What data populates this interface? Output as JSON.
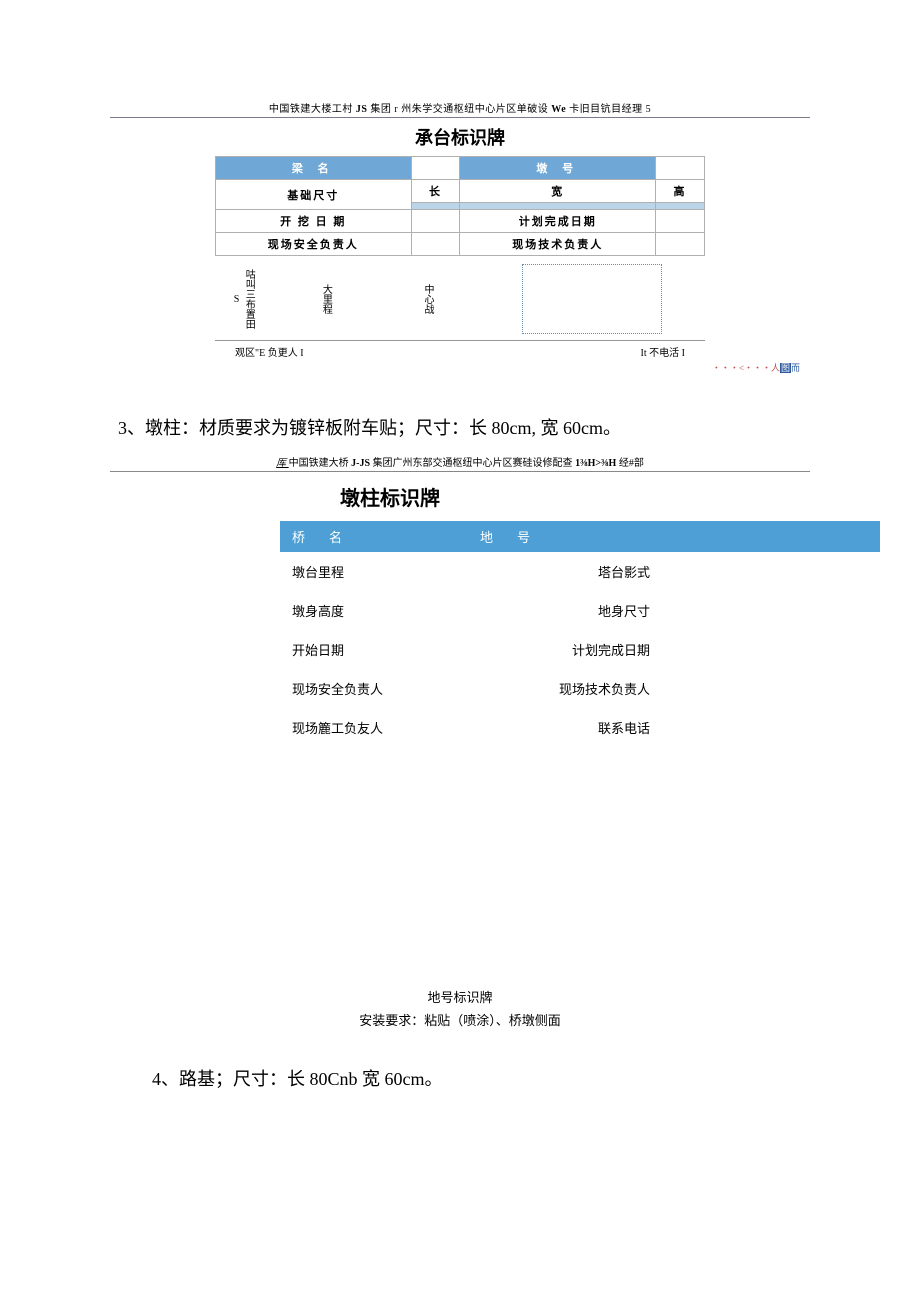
{
  "sign1": {
    "header_prefix": "中国铁建大楼工村 ",
    "header_bold1": "JS",
    "header_mid1": " 集团 r 州朱学交通枢纽中心片区单破设 ",
    "header_bold2": "We",
    "header_suffix": " 卡旧目钪目经理 5",
    "title": "承台标识牌",
    "row_hdr_left": "梁   名",
    "row_hdr_right": "墩   号",
    "base_size_label": "基础尺寸",
    "col_long": "长",
    "col_wide": "宽",
    "col_high": "高",
    "open_date": "开 挖 日 期",
    "plan_date": "计划完成日期",
    "safety_person": "现场安全负责人",
    "tech_person": "现场技术负责人",
    "diag_left1": "S",
    "diag_left2": "咕叫三布置田",
    "diag_mid1": "大里程",
    "diag_mid2": "中心战",
    "footer_left": "观区\"E 负更人 I",
    "footer_right": "It 不电活 I",
    "tiny_right": "・・・<・・・人",
    "tiny_box": "图",
    "tiny_after": "而"
  },
  "section3_text": "3、墩柱：材质要求为镀锌板附车贴；尺寸：长 80cm, 宽 60cm。",
  "sign2": {
    "header_u": "厍 ",
    "header_text1": "中国铁建大桥 ",
    "header_b1": "J-JS",
    "header_text2": " 集团广州东部交通枢纽中心片区赛硅设修配查 ",
    "header_b2": "1⅜H>⅜H",
    "header_text3": " 经#部",
    "title": "墩柱标识牌",
    "hdr_left": "桥名",
    "hdr_right": "地号",
    "rows": [
      {
        "l1": "墩台里程",
        "l2": "塔台影式"
      },
      {
        "l1": "墩身高度",
        "l2": "地身尺寸"
      },
      {
        "l1": "开始日期",
        "l2": "计划完成日期"
      },
      {
        "l1": "现场安全负责人",
        "l2": "现场技术负责人"
      },
      {
        "l1": "现场簏工负友人",
        "l2": "联系电话"
      }
    ]
  },
  "caption": {
    "line1": "地号标识牌",
    "line2": "安装要求：粘贴（喷涂）、桥墩侧面"
  },
  "section4_text": "4、路基；尺寸：长 80Cnb 宽 60cm。",
  "colors": {
    "sign1_header_bg": "#6fa8d6",
    "sign1_sub_bg": "#bcd4e8",
    "sign2_header_bg": "#4d9fd6",
    "border": "#b0b0b0",
    "diagram_border": "#6b8aa8"
  }
}
